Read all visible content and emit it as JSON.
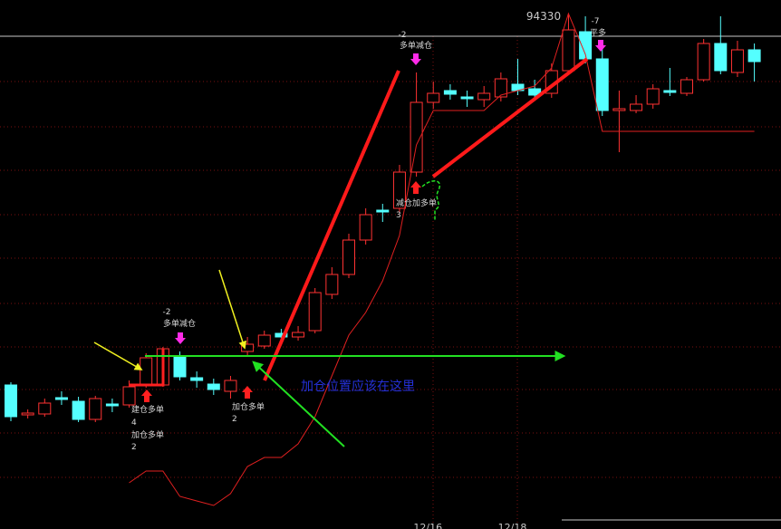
{
  "chart_data": {
    "type": "candlestick",
    "categories": [
      null,
      null,
      null,
      null,
      null,
      null,
      null,
      null,
      null,
      null,
      null,
      null,
      null,
      null,
      null,
      null,
      null,
      null,
      null,
      null,
      null,
      null,
      null,
      null,
      null,
      "12/16",
      null,
      null,
      null,
      null,
      "12/18",
      null,
      null,
      null,
      null,
      null,
      null,
      null,
      null,
      null,
      null,
      null,
      null,
      null,
      null
    ],
    "open": [
      90230,
      89900,
      89910,
      90090,
      90050,
      89850,
      90020,
      90010,
      90230,
      90230,
      90550,
      90310,
      90240,
      90160,
      90600,
      90660,
      90800,
      90760,
      90830,
      91230,
      91450,
      91830,
      92160,
      92180,
      92580,
      93350,
      93480,
      93410,
      93380,
      93410,
      93550,
      93500,
      93450,
      93700,
      94130,
      93830,
      93260,
      93260,
      93330,
      93480,
      93450,
      93600,
      94000,
      93680,
      93930
    ],
    "close": [
      89880,
      89920,
      90030,
      90070,
      89850,
      90080,
      90000,
      90210,
      90530,
      90630,
      90320,
      90280,
      90180,
      90280,
      90680,
      90780,
      90760,
      90810,
      91250,
      91450,
      91830,
      92110,
      92140,
      92580,
      93350,
      93450,
      93440,
      93390,
      93450,
      93610,
      93480,
      93430,
      93700,
      94150,
      93830,
      93260,
      93280,
      93330,
      93500,
      93460,
      93600,
      94000,
      93700,
      93930,
      93800
    ],
    "high": [
      90260,
      89960,
      90080,
      90160,
      90100,
      90110,
      90080,
      90280,
      90580,
      90650,
      90600,
      90380,
      90300,
      90330,
      90760,
      90830,
      90850,
      90880,
      91300,
      91530,
      91900,
      92180,
      92230,
      92660,
      93680,
      93580,
      93550,
      93480,
      93530,
      93680,
      93830,
      93600,
      93780,
      94330,
      94300,
      94000,
      93480,
      93430,
      93550,
      93730,
      93630,
      94050,
      94300,
      94030,
      94000
    ],
    "low": [
      89830,
      89860,
      89880,
      90010,
      89820,
      89820,
      89930,
      89980,
      90200,
      90210,
      90280,
      90200,
      90120,
      90080,
      90560,
      90630,
      90700,
      90720,
      90800,
      91180,
      91410,
      91780,
      92030,
      92130,
      92530,
      93280,
      93380,
      93300,
      93300,
      93360,
      93430,
      93380,
      93400,
      93680,
      93780,
      93200,
      92800,
      93230,
      93280,
      93420,
      93420,
      93580,
      93660,
      93630,
      93580
    ],
    "up_color": "#ff3232",
    "down_color": "#54ffff",
    "lines": [
      {
        "color": "#e02020",
        "values": [
          null,
          null,
          null,
          null,
          null,
          null,
          null,
          89150,
          89280,
          89280,
          89000,
          88950,
          88900,
          89030,
          89330,
          89430,
          89430,
          89580,
          89880,
          90330,
          90780,
          91030,
          91380,
          91880,
          92880,
          93260,
          93260,
          93260,
          93260,
          93430,
          93480,
          93530,
          93730,
          94330,
          93880,
          93030,
          93030,
          93030,
          93030,
          93030,
          93030,
          93030,
          93030,
          93030,
          93030
        ]
      }
    ],
    "ylim": [
      88640,
      94480
    ],
    "annotations": [
      "94330",
      "-2",
      "多单减仓",
      "建仓多单",
      "4",
      "加仓多单",
      "2",
      "加仓多单",
      "2",
      "-2",
      "多单减仓",
      "减仓加多单",
      "3",
      "-7",
      "平多",
      "加仓位置应该在这里"
    ]
  }
}
